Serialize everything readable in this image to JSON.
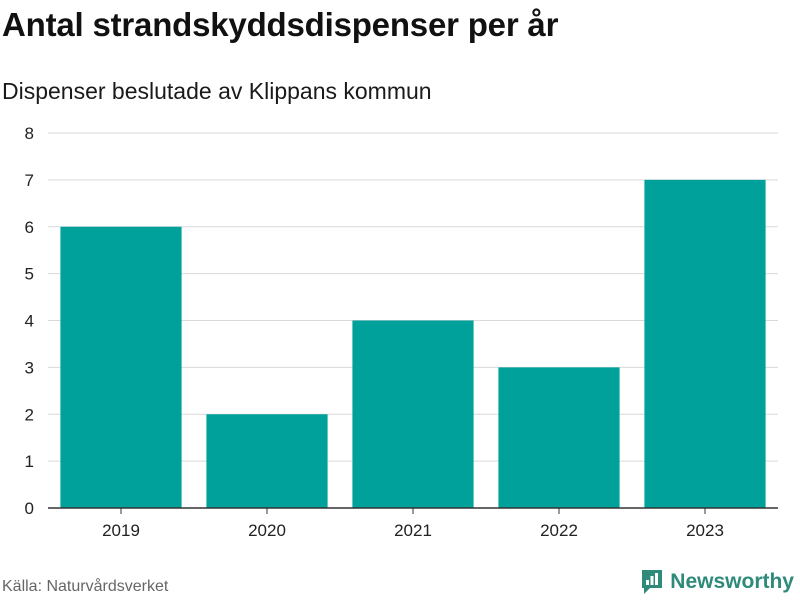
{
  "header": {
    "title": "Antal strandskyddsdispenser per år",
    "subtitle": "Dispenser beslutade av Klippans kommun"
  },
  "footer": {
    "source": "Källa: Naturvårdsverket",
    "brand": "Newsworthy",
    "brand_icon": "newsworthy-logo-icon"
  },
  "colors": {
    "bar": "#00a19a",
    "grid": "#d9d9d9",
    "axis": "#333333",
    "brand": "#2e8b7a"
  },
  "chart_data": {
    "type": "bar",
    "title": "Antal strandskyddsdispenser per år",
    "subtitle": "Dispenser beslutade av Klippans kommun",
    "xlabel": "",
    "ylabel": "",
    "categories": [
      "2019",
      "2020",
      "2021",
      "2022",
      "2023"
    ],
    "values": [
      6,
      2,
      4,
      3,
      7
    ],
    "ylim": [
      0,
      8
    ],
    "yticks": [
      0,
      1,
      2,
      3,
      4,
      5,
      6,
      7,
      8
    ],
    "grid": true,
    "legend": "none"
  }
}
